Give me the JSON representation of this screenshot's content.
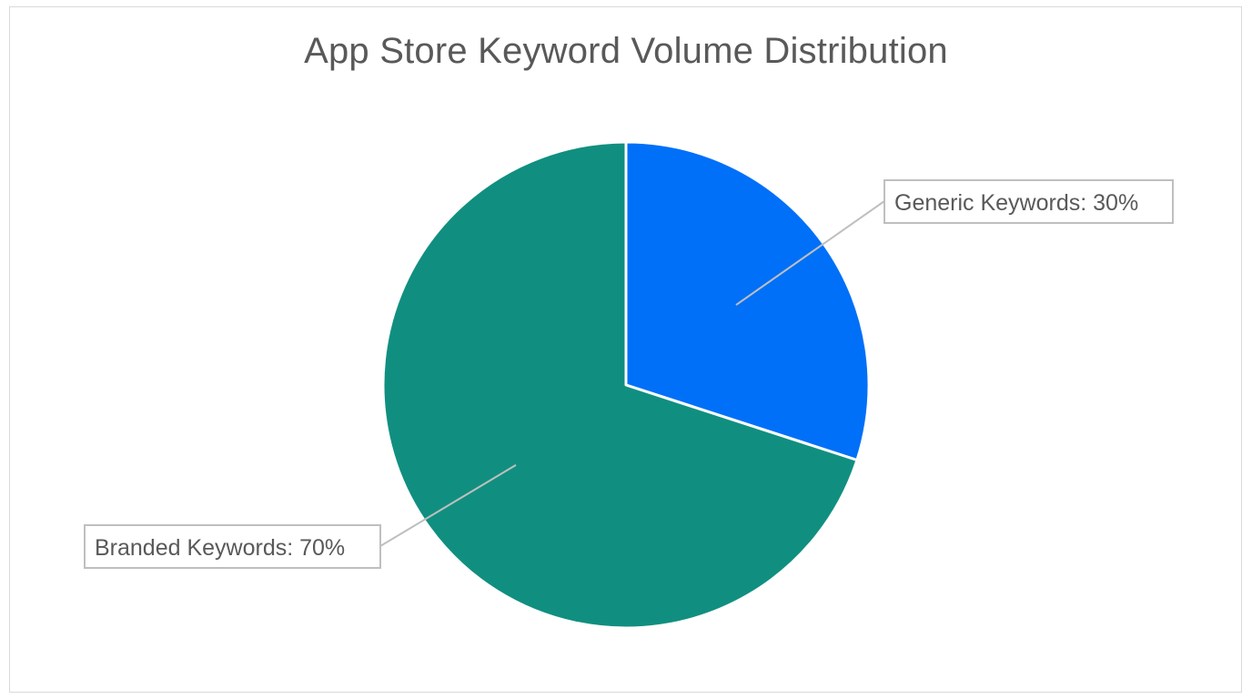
{
  "chart_data": {
    "type": "pie",
    "title": "App Store Keyword Volume Distribution",
    "slices": [
      {
        "name": "Generic Keywords",
        "value": 30,
        "label": "Generic Keywords: 30%",
        "color": "#0070F8"
      },
      {
        "name": "Branded Keywords",
        "value": 70,
        "label": "Branded Keywords: 70%",
        "color": "#108F80"
      }
    ],
    "start_angle": "12 o'clock",
    "direction": "clockwise",
    "legend": "none",
    "label_style": "callout boxes with leader lines"
  }
}
